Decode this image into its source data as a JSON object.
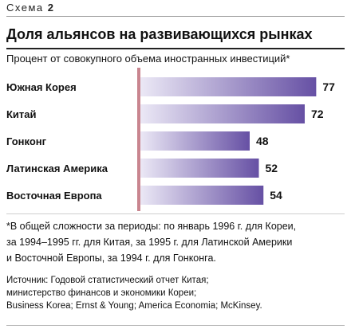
{
  "header": {
    "scheme_word": "Схема",
    "scheme_number": "2",
    "title": "Доля альянсов на развивающихся рынках"
  },
  "chart_data": {
    "type": "bar",
    "orientation": "horizontal",
    "title": "Доля альянсов на развивающихся рынках",
    "subtitle": "Процент от совокупного объема иностранных инвестиций*",
    "categories": [
      "Южная Корея",
      "Китай",
      "Гонконг",
      "Латинская Америка",
      "Восточная Европа"
    ],
    "values": [
      77,
      72,
      48,
      52,
      54
    ],
    "value_labels": [
      "77",
      "72",
      "48",
      "52",
      "54"
    ],
    "xlim": [
      0,
      80
    ],
    "grid": false,
    "legend": "none",
    "colors": {
      "bar_dark": "#6650a4",
      "bar_light": "#ece9f6",
      "baseline": "#c9858f"
    }
  },
  "notes": {
    "footnote_lines": [
      "*В общей сложности за периоды: по январь 1996 г. для Кореи,",
      "за 1994–1995 гг. для Китая, за 1995 г. для Латинской Америки",
      "и Восточной Европы, за 1994 г. для Гонконга."
    ],
    "source_lines": [
      "Источник: Годовой статистический отчет Китая;",
      "министерство финансов и экономики Кореи;",
      "Business Korea; Ernst & Young; America Economia; McKinsey."
    ]
  }
}
